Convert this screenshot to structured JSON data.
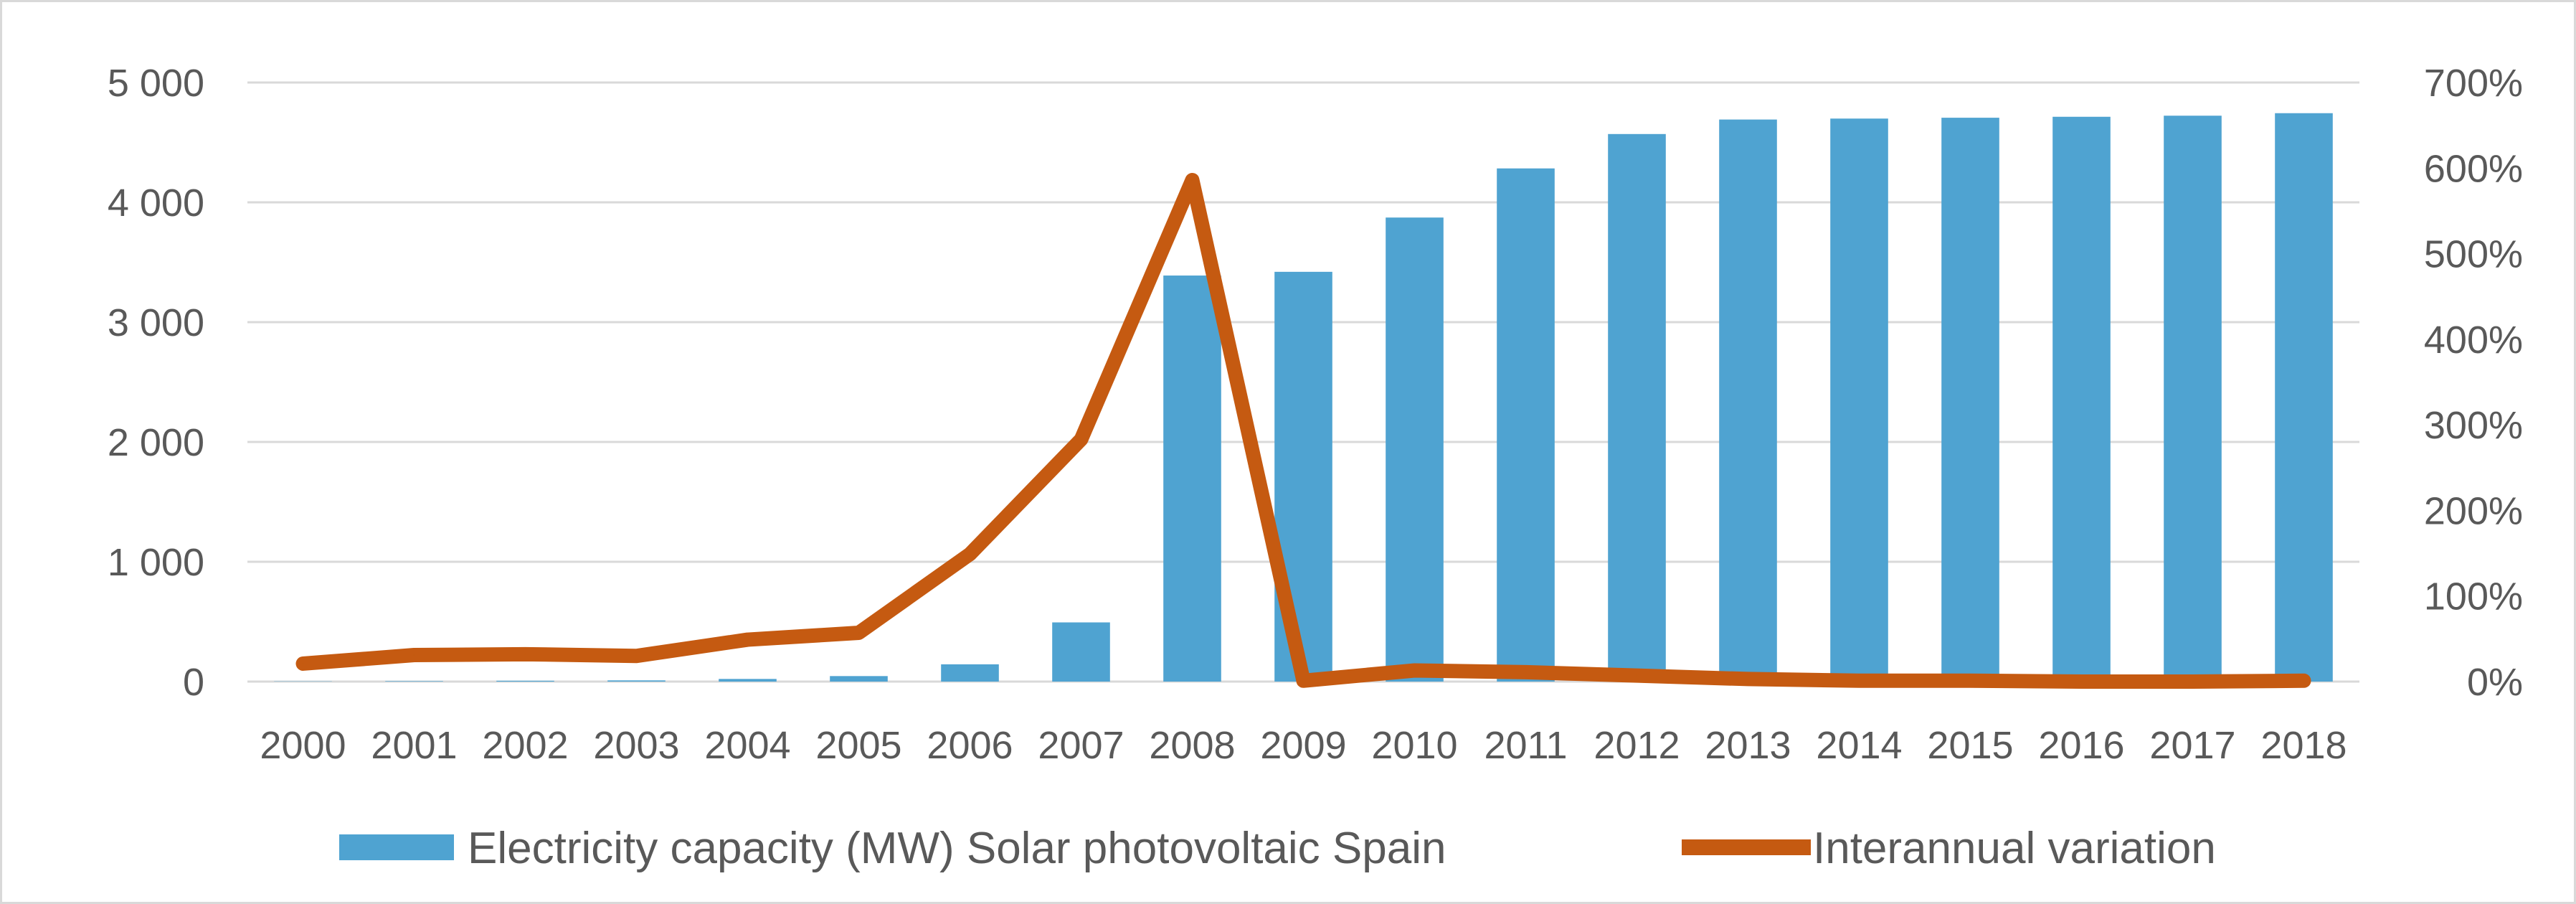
{
  "chart_data": {
    "type": "bar",
    "categories": [
      "2000",
      "2001",
      "2002",
      "2003",
      "2004",
      "2005",
      "2006",
      "2007",
      "2008",
      "2009",
      "2010",
      "2011",
      "2012",
      "2013",
      "2014",
      "2015",
      "2016",
      "2017",
      "2018"
    ],
    "series": [
      {
        "name": "Electricity capacity (MW) Solar photovoltaic Spain",
        "type": "bar",
        "axis": "left",
        "color": "#4fa3d1",
        "values": [
          2,
          4,
          7,
          10,
          22,
          46,
          144,
          494,
          3389,
          3420,
          3873,
          4283,
          4570,
          4691,
          4699,
          4706,
          4714,
          4723,
          4744
        ]
      },
      {
        "name": "Interannual variation",
        "type": "line",
        "axis": "right",
        "color": "#c55a11",
        "values": [
          21,
          31,
          32,
          30,
          49,
          57,
          149,
          283,
          586,
          1,
          13,
          11,
          7,
          3,
          1,
          1,
          0,
          0,
          1
        ]
      }
    ],
    "y_left": {
      "min": 0,
      "max": 5000,
      "ticks": [
        0,
        1000,
        2000,
        3000,
        4000,
        5000
      ],
      "tick_labels": [
        "0",
        "1 000",
        "2 000",
        "3 000",
        "4 000",
        "5 000"
      ]
    },
    "y_right": {
      "min": 0,
      "max": 700,
      "ticks": [
        0,
        100,
        200,
        300,
        400,
        500,
        600,
        700
      ],
      "tick_labels": [
        "0%",
        "100%",
        "200%",
        "300%",
        "400%",
        "500%",
        "600%",
        "700%"
      ]
    },
    "grid": true,
    "legend_position": "bottom",
    "title": "",
    "xlabel": "",
    "ylabel": ""
  }
}
